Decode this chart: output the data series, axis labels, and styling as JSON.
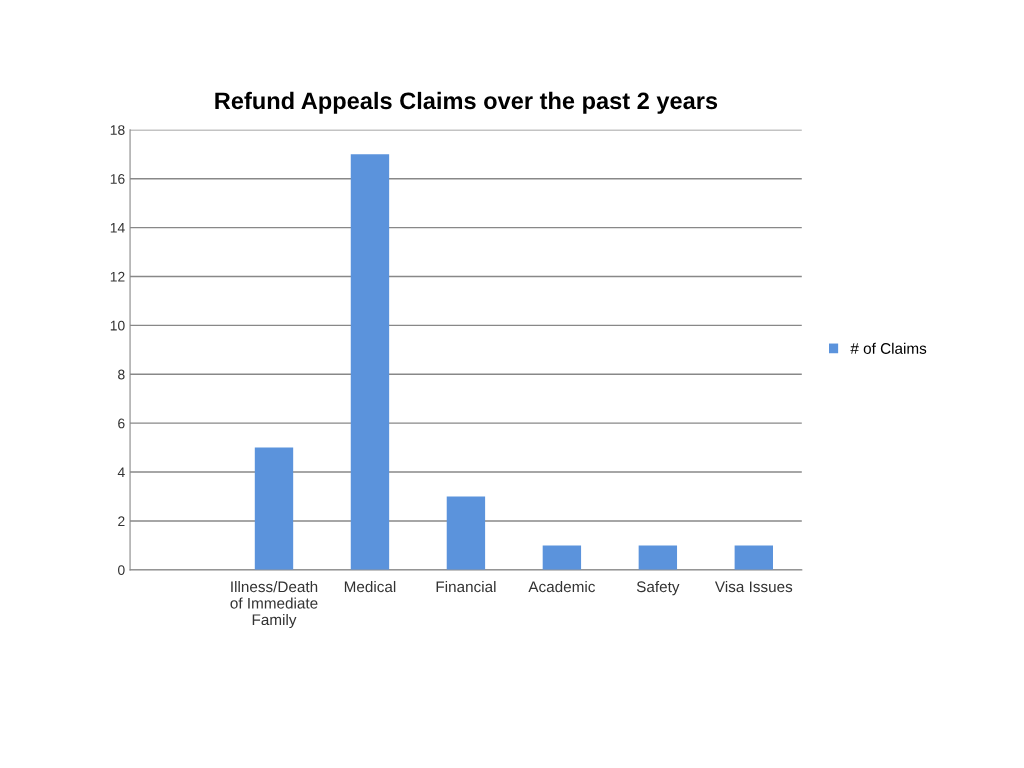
{
  "chart_data": {
    "type": "bar",
    "title": "Refund Appeals Claims over the past 2 years",
    "categories": [
      null,
      "Illness/Death\nof Immediate\nFamily",
      "Medical",
      "Financial",
      "Academic",
      "Safety",
      "Visa Issues"
    ],
    "series": [
      {
        "name": "# of Claims",
        "color": "#5b93dc",
        "values": [
          null,
          5,
          17,
          3,
          1,
          1,
          1
        ]
      }
    ],
    "ylim": [
      0,
      18
    ],
    "yticks": [
      0,
      2,
      4,
      6,
      8,
      10,
      12,
      14,
      16,
      18
    ],
    "grid": "y",
    "legend": "right"
  }
}
